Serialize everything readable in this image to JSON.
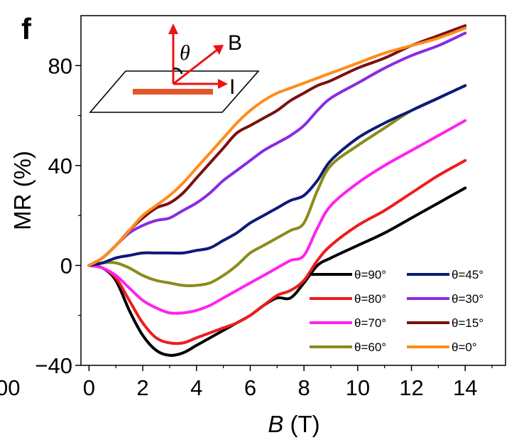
{
  "panel_label": "f",
  "cut_off_tick": "00",
  "chart_data": {
    "type": "line",
    "xlabel": "B",
    "xlabel_unit": " (T)",
    "ylabel": "MR (%)",
    "xlim": [
      -0.3,
      15.5
    ],
    "ylim": [
      -40,
      100
    ],
    "x_ticks": [
      0,
      2,
      4,
      6,
      8,
      10,
      12,
      14
    ],
    "x_tick_labels": [
      "0",
      "2",
      "4",
      "6",
      "8",
      "10",
      "12",
      "14"
    ],
    "y_ticks": [
      80,
      40,
      0,
      -40
    ],
    "y_tick_labels": [
      "80",
      "40",
      "0",
      "−40"
    ],
    "grid": false,
    "legend_position": "bottom-right",
    "series": [
      {
        "name": "θ=90°",
        "color": "#000000",
        "x": [
          0,
          0.5,
          1,
          1.5,
          2,
          2.5,
          3,
          3.5,
          4,
          4.5,
          5,
          5.5,
          6,
          6.5,
          7,
          7.5,
          8,
          8.5,
          9,
          10,
          11,
          12,
          13,
          14
        ],
        "y": [
          0,
          -1,
          -6,
          -18,
          -28,
          -34,
          -36,
          -35,
          -32,
          -29,
          -26,
          -23,
          -20,
          -16,
          -13,
          -13,
          -7,
          0,
          3,
          8,
          13,
          19,
          25,
          31
        ]
      },
      {
        "name": "θ=80°",
        "color": "#ee1c1c",
        "x": [
          0,
          0.5,
          1,
          1.5,
          2,
          2.5,
          3,
          3.5,
          4,
          4.5,
          5,
          5.5,
          6,
          6.5,
          7,
          7.5,
          8,
          8.5,
          9,
          10,
          11,
          12,
          13,
          14
        ],
        "y": [
          0,
          -1,
          -5,
          -14,
          -23,
          -29,
          -31,
          -31,
          -29,
          -27,
          -25,
          -23,
          -20,
          -16,
          -12,
          -10,
          -6,
          2,
          8,
          16,
          22,
          29,
          36,
          42
        ]
      },
      {
        "name": "θ=70°",
        "color": "#ff22ee",
        "x": [
          0,
          0.5,
          1,
          1.5,
          2,
          2.5,
          3,
          3.5,
          4,
          4.5,
          5,
          5.5,
          6,
          6.5,
          7,
          7.5,
          8,
          8.5,
          9,
          10,
          11,
          12,
          13,
          14
        ],
        "y": [
          0,
          -1,
          -4,
          -9,
          -14,
          -17,
          -19,
          -19,
          -18,
          -16,
          -13,
          -10,
          -7,
          -4,
          -1,
          2,
          4,
          15,
          24,
          33,
          40,
          46,
          52,
          58
        ]
      },
      {
        "name": "θ=60°",
        "color": "#8b8b1b",
        "x": [
          0,
          0.5,
          1,
          1.5,
          2,
          2.5,
          3,
          3.5,
          4,
          4.5,
          5,
          5.5,
          6,
          6.5,
          7,
          7.5,
          8,
          8.5,
          9,
          10,
          11,
          12,
          13,
          14
        ],
        "y": [
          0,
          1,
          1,
          -1,
          -4,
          -6,
          -7,
          -8,
          -8,
          -7,
          -4,
          0,
          5,
          8,
          11,
          14,
          17,
          30,
          40,
          48,
          55,
          62,
          67,
          72
        ]
      },
      {
        "name": "θ=45°",
        "color": "#0d1a78",
        "x": [
          0,
          0.5,
          1,
          1.5,
          2,
          2.5,
          3,
          3.5,
          4,
          4.5,
          5,
          5.5,
          6,
          6.5,
          7,
          7.5,
          8,
          8.5,
          9,
          10,
          11,
          12,
          13,
          14
        ],
        "y": [
          0,
          1,
          3,
          4,
          5,
          5,
          5,
          5,
          6,
          7,
          10,
          13,
          17,
          20,
          23,
          26,
          28,
          34,
          42,
          51,
          57,
          62,
          67,
          72
        ]
      },
      {
        "name": "θ=30°",
        "color": "#8a2be2",
        "x": [
          0,
          0.5,
          1,
          1.5,
          2,
          2.5,
          3,
          3.5,
          4,
          4.5,
          5,
          5.5,
          6,
          6.5,
          7,
          7.5,
          8,
          8.5,
          9,
          10,
          11,
          12,
          13,
          14
        ],
        "y": [
          0,
          3,
          8,
          13,
          16,
          18,
          19,
          22,
          25,
          29,
          34,
          38,
          42,
          46,
          49,
          52,
          56,
          62,
          67,
          73,
          79,
          84,
          88,
          93
        ]
      },
      {
        "name": "θ=15°",
        "color": "#7a1010",
        "x": [
          0,
          0.5,
          1,
          1.5,
          2,
          2.5,
          3,
          3.5,
          4,
          4.5,
          5,
          5.5,
          6,
          6.5,
          7,
          7.5,
          8,
          8.5,
          9,
          10,
          11,
          12,
          13,
          14
        ],
        "y": [
          0,
          3,
          8,
          14,
          19,
          23,
          25,
          29,
          35,
          41,
          47,
          53,
          56,
          59,
          62,
          66,
          69,
          72,
          74,
          79,
          83,
          88,
          92,
          96
        ]
      },
      {
        "name": "θ=0°",
        "color": "#ff8c1a",
        "x": [
          0,
          0.5,
          1,
          1.5,
          2,
          2.5,
          3,
          3.5,
          4,
          4.5,
          5,
          5.5,
          6,
          6.5,
          7,
          7.5,
          8,
          8.5,
          9,
          10,
          11,
          12,
          13,
          14
        ],
        "y": [
          0,
          3,
          8,
          14,
          20,
          24,
          28,
          33,
          39,
          45,
          51,
          57,
          62,
          66,
          69,
          71,
          73,
          75,
          77,
          81,
          85,
          88,
          91,
          95
        ]
      }
    ]
  },
  "inset": {
    "theta_label": "θ",
    "b_label": "B",
    "i_label": "I",
    "sample_color": "#e2572b",
    "arrow_color": "#ee1111"
  }
}
